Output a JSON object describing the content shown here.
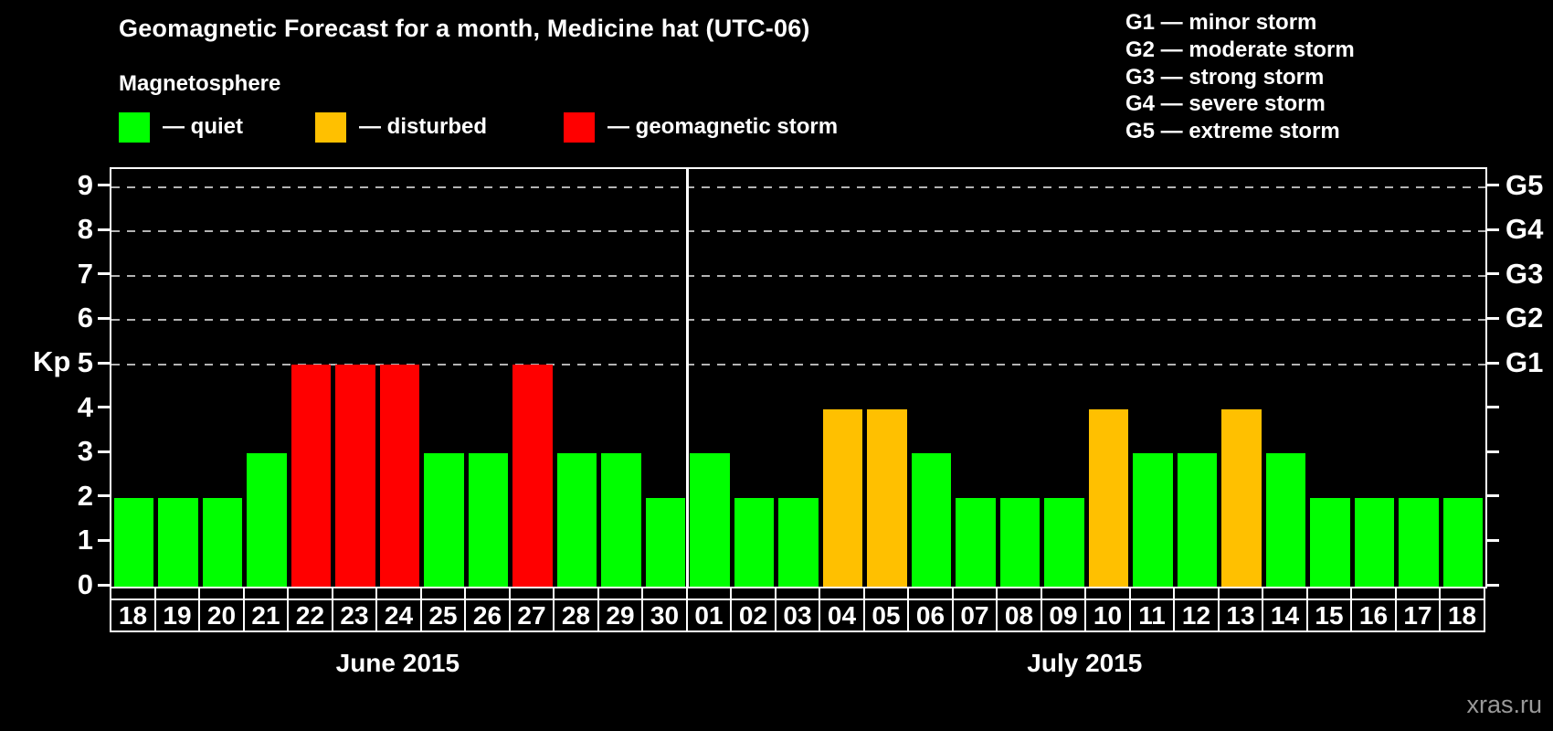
{
  "title": "Geomagnetic Forecast for a month, Medicine hat (UTC-06)",
  "subtitle": "Magnetosphere",
  "legend": {
    "items": [
      {
        "key": "quiet",
        "label": "— quiet",
        "color": "#00ff00"
      },
      {
        "key": "disturbed",
        "label": "— disturbed",
        "color": "#ffc000"
      },
      {
        "key": "storm",
        "label": "— geomagnetic storm",
        "color": "#ff0000"
      }
    ]
  },
  "g_legend": [
    {
      "label": "G1 — minor storm"
    },
    {
      "label": "G2 — moderate storm"
    },
    {
      "label": "G3 — strong storm"
    },
    {
      "label": "G4 — severe storm"
    },
    {
      "label": "G5 — extreme storm"
    }
  ],
  "watermark": "xras.ru",
  "chart_data": {
    "type": "bar",
    "title": "Geomagnetic Forecast for a month, Medicine hat (UTC-06)",
    "xlabel": "",
    "ylabel": "Kp",
    "ylim": [
      0,
      9.4
    ],
    "y_ticks": [
      "0",
      "1",
      "2",
      "3",
      "4",
      "5",
      "6",
      "7",
      "8",
      "9"
    ],
    "gridlines_at": [
      5,
      6,
      7,
      8,
      9
    ],
    "grid": "dashed, only at G-storm levels 5-9",
    "legend_position": "top-left",
    "right_axis_labels": [
      {
        "value": 5,
        "label": "G1"
      },
      {
        "value": 6,
        "label": "G2"
      },
      {
        "value": 7,
        "label": "G3"
      },
      {
        "value": 8,
        "label": "G4"
      },
      {
        "value": 9,
        "label": "G5"
      }
    ],
    "status_colors": {
      "quiet": "#00ff00",
      "disturbed": "#ffc000",
      "storm": "#ff0000"
    },
    "months": [
      {
        "label": "June 2015",
        "days": [
          "18",
          "19",
          "20",
          "21",
          "22",
          "23",
          "24",
          "25",
          "26",
          "27",
          "28",
          "29",
          "30"
        ],
        "values": [
          2,
          2,
          2,
          3,
          5,
          5,
          5,
          3,
          3,
          5,
          3,
          3,
          2
        ],
        "status": [
          "quiet",
          "quiet",
          "quiet",
          "quiet",
          "storm",
          "storm",
          "storm",
          "quiet",
          "quiet",
          "storm",
          "quiet",
          "quiet",
          "quiet"
        ]
      },
      {
        "label": "July 2015",
        "days": [
          "01",
          "02",
          "03",
          "04",
          "05",
          "06",
          "07",
          "08",
          "09",
          "10",
          "11",
          "12",
          "13",
          "14",
          "15",
          "16",
          "17",
          "18"
        ],
        "values": [
          3,
          2,
          2,
          4,
          4,
          3,
          2,
          2,
          2,
          4,
          3,
          3,
          4,
          3,
          2,
          2,
          2,
          2
        ],
        "status": [
          "quiet",
          "quiet",
          "quiet",
          "disturbed",
          "disturbed",
          "quiet",
          "quiet",
          "quiet",
          "quiet",
          "disturbed",
          "quiet",
          "quiet",
          "disturbed",
          "quiet",
          "quiet",
          "quiet",
          "quiet",
          "quiet"
        ]
      }
    ]
  }
}
